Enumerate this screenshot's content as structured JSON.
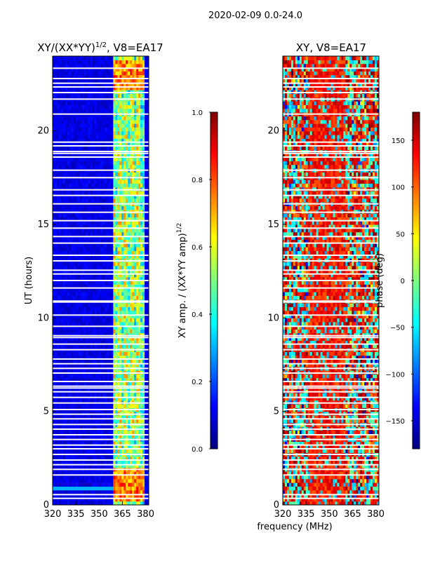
{
  "figure": {
    "suptitle": "2020-02-09 0.0-24.0",
    "shared_xlabel": "frequency (MHz)"
  },
  "colors": {
    "jet": [
      "#00007f",
      "#0000ff",
      "#007fff",
      "#00ffff",
      "#7fff7f",
      "#ffff00",
      "#ff7f00",
      "#ff0000",
      "#7f0000"
    ],
    "flag": "#ffffff"
  },
  "chart_data": [
    {
      "type": "heatmap",
      "title_text": "XY/(XX*YY)",
      "title_superscript": "1/2",
      "title_suffix": ", V8=EA17",
      "title": "XY/(XX*YY)^1/2, V8=EA17",
      "xlabel": "",
      "ylabel": "UT (hours)",
      "xlim": [
        320,
        382
      ],
      "ylim": [
        0,
        24
      ],
      "xticks": [
        320,
        335,
        350,
        365,
        380
      ],
      "yticks": [
        0,
        5,
        10,
        15,
        20
      ],
      "quantity": "XY amplitude normalised by (XX*YY amp)^1/2",
      "colorbar": {
        "label_text": "XY amp. / (XX*YY amp)",
        "label_superscript": "1/2",
        "label": "XY amp. / (XX*YY amp)^1/2",
        "range": [
          0.0,
          1.0
        ],
        "ticks": [
          "0.0",
          "0.2",
          "0.4",
          "0.6",
          "0.8",
          "1.0"
        ]
      },
      "features": {
        "background_level": 0.1,
        "active_band_mhz": [
          359,
          379
        ],
        "active_band_level": 0.45,
        "bright_channel_mhz": [
          360,
          363,
          367,
          371,
          375
        ],
        "hot_periods_ut": [
          [
            0.3,
            2.0
          ],
          [
            22.3,
            23.8
          ]
        ],
        "hot_level": 0.88,
        "low_band_feature_ut": 0.9
      },
      "flagged_ut": [
        0.35,
        0.55,
        1.6,
        1.9,
        2.15,
        2.4,
        2.7,
        3.0,
        3.2,
        3.5,
        3.75,
        4.05,
        4.3,
        4.6,
        4.85,
        5.1,
        5.45,
        5.75,
        6.05,
        6.25,
        6.35,
        6.6,
        7.05,
        7.3,
        7.55,
        7.8,
        8.3,
        8.6,
        8.95,
        9.05,
        9.55,
        10.15,
        10.85,
        10.9,
        11.6,
        12.0,
        12.35,
        12.55,
        13.05,
        13.35,
        14.0,
        14.35,
        14.8,
        15.2,
        15.65,
        16.1,
        16.55,
        16.85,
        17.5,
        17.9,
        18.6,
        18.8,
        18.9,
        19.2,
        19.4,
        20.9,
        21.7,
        22.05,
        22.35,
        22.55,
        22.8,
        23.35
      ]
    },
    {
      "type": "heatmap",
      "title": "XY, V8=EA17",
      "xlabel": "",
      "ylabel": "",
      "xlim": [
        320,
        382
      ],
      "ylim": [
        0,
        24
      ],
      "xticks": [
        320,
        335,
        350,
        365,
        380
      ],
      "yticks": [
        0,
        5,
        10,
        15,
        20
      ],
      "quantity": "XY phase (deg)",
      "colorbar": {
        "label": "phase (deg)",
        "range": [
          -180,
          180
        ],
        "ticks": [
          "150",
          "100",
          "50",
          "0",
          "−50",
          "−100",
          "−150"
        ],
        "tick_values": [
          150,
          100,
          50,
          0,
          -50,
          -100,
          -150
        ]
      },
      "features": {
        "dominant_phase_deg": [
          90,
          160
        ],
        "secondary_phase_deg": [
          -80,
          -20
        ],
        "central_band_mhz": [
          336,
          360
        ],
        "noise_level": "high"
      },
      "flagged_ut": [
        0.35,
        0.55,
        1.6,
        1.9,
        2.15,
        2.4,
        2.7,
        3.0,
        3.2,
        3.5,
        3.75,
        4.05,
        4.3,
        4.6,
        4.85,
        5.1,
        5.45,
        5.75,
        6.05,
        6.25,
        6.35,
        6.6,
        7.05,
        7.3,
        7.55,
        7.8,
        8.3,
        8.6,
        8.95,
        9.05,
        9.55,
        10.15,
        10.85,
        10.9,
        11.6,
        12.0,
        12.35,
        12.55,
        13.05,
        13.35,
        14.0,
        14.35,
        14.8,
        15.2,
        15.65,
        16.1,
        16.55,
        16.85,
        17.5,
        17.9,
        18.6,
        18.8,
        18.9,
        19.2,
        19.4,
        20.9,
        21.7,
        22.05,
        22.35,
        22.55,
        22.8,
        23.35
      ]
    }
  ]
}
